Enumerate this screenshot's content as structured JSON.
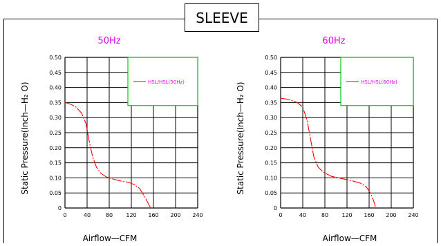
{
  "header": {
    "title": "SLEEVE"
  },
  "colors": {
    "frame": "#000000",
    "grid": "#000000",
    "curve": "#ff0000",
    "subtitle": "#e600e6",
    "legend_box": "#00cc00",
    "legend_text": "#e600e6"
  },
  "chart_data": [
    {
      "type": "line",
      "title": "50Hz",
      "xlabel": "Airflow—CFM",
      "ylabel": "Static  Pressure(Inch—H₂ O)",
      "xlim": [
        0,
        240
      ],
      "ylim": [
        0,
        0.5
      ],
      "xticks": [
        "0",
        "40",
        "80",
        "120",
        "160",
        "200",
        "240"
      ],
      "yticks": [
        "0",
        "0.05",
        "0.10",
        "0.15",
        "0.20",
        "0.25",
        "0.30",
        "0.35",
        "0.40",
        "0.45",
        "0.50"
      ],
      "grid": true,
      "legend_position": "top-right",
      "series": [
        {
          "name": "HSL/HSL(50Hz)",
          "color": "#ff0000",
          "points": [
            [
              0,
              0.35
            ],
            [
              10,
              0.345
            ],
            [
              20,
              0.335
            ],
            [
              30,
              0.315
            ],
            [
              38,
              0.28
            ],
            [
              44,
              0.22
            ],
            [
              50,
              0.17
            ],
            [
              57,
              0.135
            ],
            [
              65,
              0.115
            ],
            [
              75,
              0.103
            ],
            [
              85,
              0.097
            ],
            [
              100,
              0.09
            ],
            [
              115,
              0.085
            ],
            [
              125,
              0.078
            ],
            [
              135,
              0.065
            ],
            [
              145,
              0.035
            ],
            [
              152,
              0.01
            ],
            [
              155,
              0.0
            ]
          ]
        }
      ]
    },
    {
      "type": "line",
      "title": "60Hz",
      "xlabel": "Airflow—CFM",
      "ylabel": "Static  Pressure(Inch—H₂ O)",
      "xlim": [
        0,
        240
      ],
      "ylim": [
        0,
        0.5
      ],
      "xticks": [
        "0",
        "40",
        "80",
        "120",
        "160",
        "200",
        "240"
      ],
      "yticks": [
        "0",
        "0.05",
        "0.10",
        "0.15",
        "0.20",
        "0.25",
        "0.30",
        "0.35",
        "0.40",
        "0.45",
        "0.50"
      ],
      "grid": true,
      "legend_position": "top-right",
      "series": [
        {
          "name": "HSL/HSL(60Hz)",
          "color": "#ff0000",
          "points": [
            [
              0,
              0.365
            ],
            [
              15,
              0.36
            ],
            [
              30,
              0.35
            ],
            [
              40,
              0.335
            ],
            [
              48,
              0.29
            ],
            [
              54,
              0.23
            ],
            [
              60,
              0.17
            ],
            [
              68,
              0.135
            ],
            [
              78,
              0.118
            ],
            [
              92,
              0.105
            ],
            [
              110,
              0.098
            ],
            [
              130,
              0.09
            ],
            [
              145,
              0.082
            ],
            [
              155,
              0.07
            ],
            [
              162,
              0.05
            ],
            [
              168,
              0.025
            ],
            [
              172,
              0.0
            ]
          ]
        }
      ]
    }
  ]
}
